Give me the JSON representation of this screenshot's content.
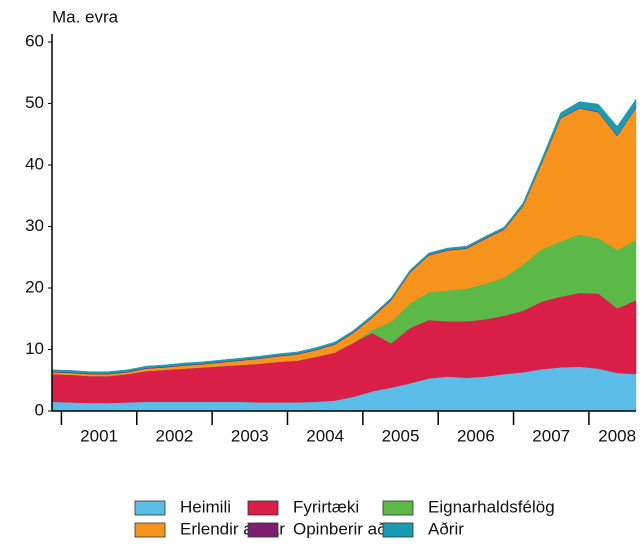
{
  "chart_data": {
    "type": "stacked_area",
    "y_label": "Ma. evra",
    "categories": [
      null,
      null,
      "2001",
      null,
      null,
      null,
      "2002",
      null,
      null,
      null,
      "2003",
      null,
      null,
      null,
      "2004",
      null,
      null,
      null,
      "2005",
      null,
      null,
      null,
      "2006",
      null,
      null,
      null,
      "2007",
      null,
      null,
      null,
      "2008",
      null
    ],
    "ylim": [
      0,
      60
    ],
    "yticks": [
      0,
      10,
      20,
      30,
      40,
      50,
      60
    ],
    "series": [
      {
        "name": "Heimili",
        "color": "#5bbde8",
        "values": [
          1.5,
          1.4,
          1.3,
          1.3,
          1.4,
          1.5,
          1.5,
          1.5,
          1.5,
          1.5,
          1.5,
          1.4,
          1.4,
          1.4,
          1.5,
          1.7,
          2.3,
          3.2,
          3.8,
          4.5,
          5.3,
          5.6,
          5.4,
          5.6,
          6.0,
          6.3,
          6.8,
          7.1,
          7.2,
          6.9,
          6.2,
          6.0
        ]
      },
      {
        "name": "Fyrirtæki",
        "color": "#d91e48",
        "values": [
          4.5,
          4.5,
          4.4,
          4.4,
          4.6,
          5.0,
          5.2,
          5.4,
          5.6,
          5.8,
          6.0,
          6.3,
          6.6,
          6.8,
          7.3,
          7.8,
          8.8,
          9.5,
          7.2,
          9.0,
          9.5,
          9.0,
          9.2,
          9.3,
          9.5,
          10.0,
          11.0,
          11.5,
          12.0,
          12.2,
          10.5,
          12.0
        ]
      },
      {
        "name": "Eignarhaldsfélög",
        "color": "#5cb947",
        "values": [
          0,
          0,
          0,
          0,
          0,
          0,
          0,
          0,
          0,
          0,
          0,
          0,
          0,
          0,
          0,
          0,
          0,
          0.5,
          3.5,
          4.0,
          4.5,
          5.0,
          5.3,
          5.8,
          6.2,
          7.5,
          8.5,
          9.0,
          9.5,
          9.0,
          9.5,
          9.8
        ]
      },
      {
        "name": "Erlendir aðilar",
        "color": "#f7941d",
        "values": [
          0.3,
          0.3,
          0.3,
          0.3,
          0.3,
          0.4,
          0.4,
          0.5,
          0.5,
          0.6,
          0.7,
          0.8,
          0.9,
          1.0,
          1.1,
          1.3,
          1.6,
          2.0,
          3.5,
          5.0,
          6.0,
          6.5,
          6.5,
          7.3,
          7.8,
          9.5,
          14.0,
          20.0,
          20.5,
          20.5,
          18.5,
          21.5
        ]
      },
      {
        "name": "Opinberir aðilar",
        "color": "#7b1f6e",
        "values": [
          0.1,
          0.1,
          0.1,
          0.1,
          0.1,
          0.1,
          0.1,
          0.1,
          0.1,
          0.1,
          0.1,
          0.1,
          0.1,
          0.1,
          0.1,
          0.1,
          0.1,
          0.1,
          0.1,
          0.1,
          0.1,
          0.1,
          0.1,
          0.1,
          0.1,
          0.1,
          0.1,
          0.1,
          0.1,
          0.1,
          0.1,
          0.1
        ]
      },
      {
        "name": "Aðrir",
        "color": "#1b9bb0",
        "values": [
          0.3,
          0.3,
          0.3,
          0.3,
          0.3,
          0.3,
          0.3,
          0.3,
          0.3,
          0.3,
          0.3,
          0.3,
          0.3,
          0.3,
          0.3,
          0.3,
          0.3,
          0.3,
          0.3,
          0.3,
          0.3,
          0.3,
          0.3,
          0.3,
          0.3,
          0.4,
          0.6,
          0.8,
          1.0,
          1.2,
          1.5,
          1.3
        ]
      }
    ]
  }
}
